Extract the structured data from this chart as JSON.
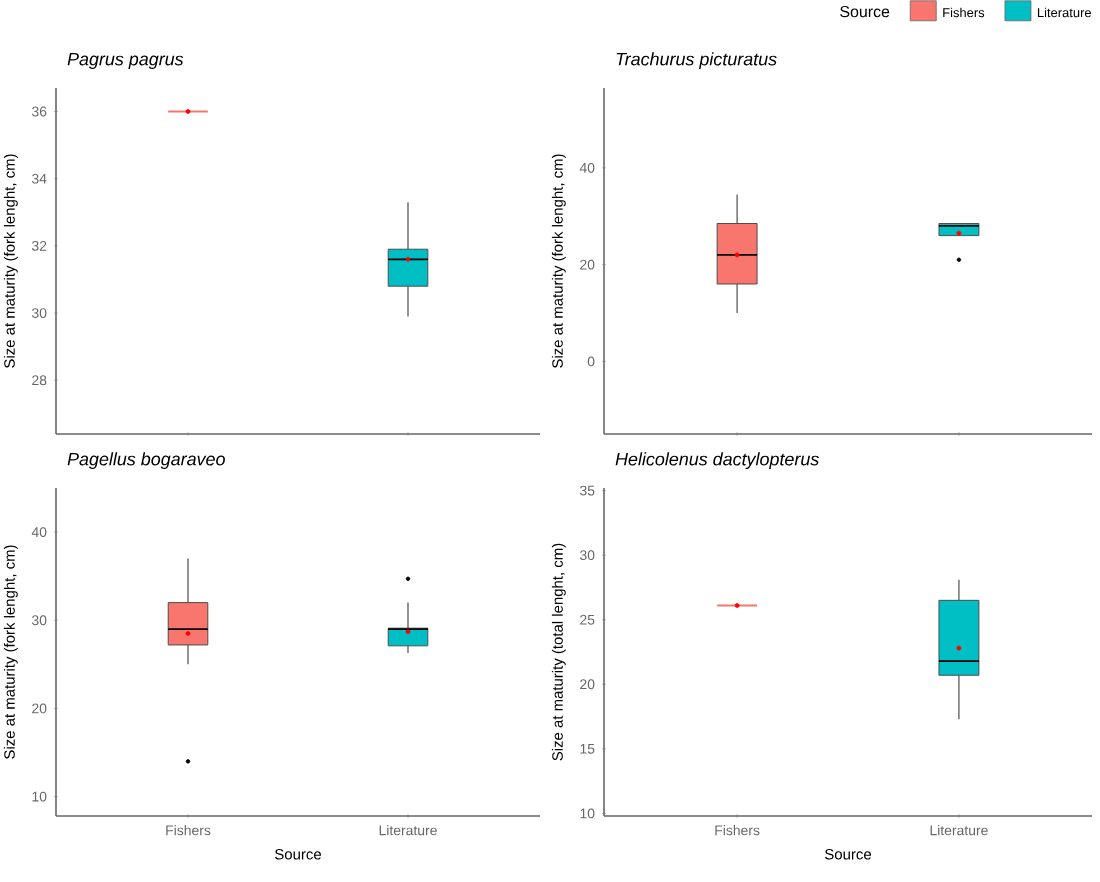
{
  "chart_data": [
    {
      "type": "box",
      "title": "Pagrus pagrus",
      "ylabel": "Size at maturity (fork lenght, cm)",
      "categories": [
        null,
        null
      ],
      "tick_labels": "y",
      "ylim": [
        26.4,
        36.7
      ],
      "yticks": [
        28,
        30,
        32,
        34,
        36
      ],
      "series": [
        {
          "color": "#f8766d",
          "boxes": [
            {
              "low": 36,
              "q1": 36,
              "median": 36,
              "q3": 36,
              "high": 36,
              "mean": 36
            },
            null
          ]
        },
        {
          "color": "#00bfc4",
          "boxes": [
            null,
            {
              "low": 29.9,
              "q1": 30.8,
              "median": 31.6,
              "q3": 31.9,
              "high": 33.3,
              "mean": 31.6
            }
          ]
        }
      ]
    },
    {
      "type": "box",
      "title": "Trachurus picturatus",
      "ylabel": "Size at maturity (fork lenght, cm)",
      "categories": [
        null,
        null
      ],
      "tick_labels": "y",
      "ylim": [
        -15,
        56.5
      ],
      "yticks": [
        0,
        20,
        40
      ],
      "legend": "top right",
      "legend_title": "Source",
      "series": [
        {
          "name": "Fishers",
          "color": "#f8766d",
          "boxes": [
            {
              "low": 10,
              "q1": 16,
              "median": 22,
              "q3": 28.5,
              "high": 34.5,
              "mean": 22
            },
            null
          ]
        },
        {
          "name": "Literature",
          "color": "#00bfc4",
          "boxes": [
            null,
            {
              "low": 26,
              "q1": 26,
              "median": 28,
              "q3": 28.5,
              "high": 28.5,
              "mean": 26.5,
              "outliers": [
                21
              ]
            }
          ]
        }
      ]
    },
    {
      "type": "box",
      "title": "Pagellus bogaraveo",
      "ylabel": "Size at maturity (fork lenght, cm)",
      "xlabel": "Source",
      "categories": [
        "Fishers",
        "Literature"
      ],
      "ylim": [
        7.8,
        45
      ],
      "yticks": [
        10,
        20,
        30,
        40
      ],
      "series": [
        {
          "color": "#f8766d",
          "boxes": [
            {
              "low": 25,
              "q1": 27.2,
              "median": 29,
              "q3": 32,
              "high": 37,
              "mean": 28.5,
              "outliers": [
                14
              ]
            },
            null
          ]
        },
        {
          "color": "#00bfc4",
          "boxes": [
            null,
            {
              "low": 26.3,
              "q1": 27.1,
              "median": 29,
              "q3": 29.1,
              "high": 32,
              "mean": 28.7,
              "outliers": [
                34.7
              ]
            }
          ]
        }
      ]
    },
    {
      "type": "box",
      "title": "Helicolenus dactylopterus",
      "ylabel": "Size at maturity (total lenght, cm)",
      "xlabel": "Source",
      "categories": [
        "Fishers",
        "Literature"
      ],
      "ylim": [
        9.8,
        35.2
      ],
      "yticks": [
        10,
        15,
        20,
        25,
        30,
        35
      ],
      "series": [
        {
          "color": "#f8766d",
          "boxes": [
            {
              "low": 26.1,
              "q1": 26.1,
              "median": 26.1,
              "q3": 26.1,
              "high": 26.1,
              "mean": 26.1
            },
            null
          ]
        },
        {
          "color": "#00bfc4",
          "boxes": [
            null,
            {
              "low": 17.3,
              "q1": 20.7,
              "median": 21.8,
              "q3": 26.5,
              "high": 28.1,
              "mean": 22.8
            }
          ]
        }
      ]
    }
  ]
}
